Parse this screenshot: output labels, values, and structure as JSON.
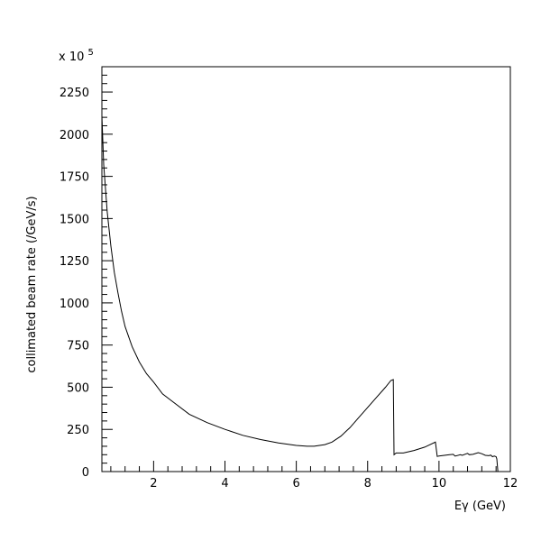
{
  "chart_data": {
    "type": "line",
    "title": "",
    "xlabel": "Eγ (GeV)",
    "ylabel": "collimated beam rate (/GeV/s)",
    "y_multiplier": "x 10",
    "y_multiplier_exp": "5",
    "xlim": [
      0.55,
      12.0
    ],
    "ylim": [
      0,
      2400
    ],
    "xticks": [
      2,
      4,
      6,
      8,
      10,
      12
    ],
    "xtick_labels": [
      "2",
      "4",
      "6",
      "8",
      "10",
      "12"
    ],
    "yticks": [
      0,
      250,
      500,
      750,
      1000,
      1250,
      1500,
      1750,
      2000,
      2250
    ],
    "ytick_labels": [
      "0",
      "250",
      "500",
      "750",
      "1000",
      "1250",
      "1500",
      "1750",
      "2000",
      "2250"
    ],
    "grid": false,
    "series": [
      {
        "x": [
          0.55,
          0.6,
          0.7,
          0.8,
          0.9,
          1.0,
          1.1,
          1.2,
          1.4,
          1.6,
          1.8,
          2.0,
          2.25,
          2.5,
          3.0,
          3.5,
          4.0,
          4.5,
          5.0,
          5.5,
          6.0,
          6.3,
          6.5,
          6.8,
          7.0,
          7.25,
          7.5,
          7.75,
          8.0,
          8.25,
          8.5,
          8.65,
          8.72,
          8.74,
          8.8,
          9.0,
          9.3,
          9.6,
          9.9,
          9.95,
          10.0,
          10.3,
          10.4,
          10.45,
          10.6,
          10.65,
          10.8,
          10.85,
          10.95,
          11.1,
          11.2,
          11.3,
          11.4,
          11.45,
          11.5,
          11.55,
          11.6,
          11.62,
          11.65
        ],
        "y": [
          2110,
          1820,
          1540,
          1340,
          1180,
          1060,
          950,
          860,
          740,
          650,
          580,
          530,
          460,
          420,
          340,
          290,
          250,
          215,
          190,
          170,
          155,
          150,
          150,
          160,
          175,
          210,
          260,
          320,
          380,
          440,
          500,
          540,
          545,
          100,
          110,
          110,
          125,
          145,
          175,
          90,
          92,
          100,
          102,
          92,
          100,
          96,
          108,
          100,
          102,
          112,
          106,
          96,
          94,
          98,
          88,
          92,
          88,
          75,
          0
        ]
      }
    ]
  }
}
